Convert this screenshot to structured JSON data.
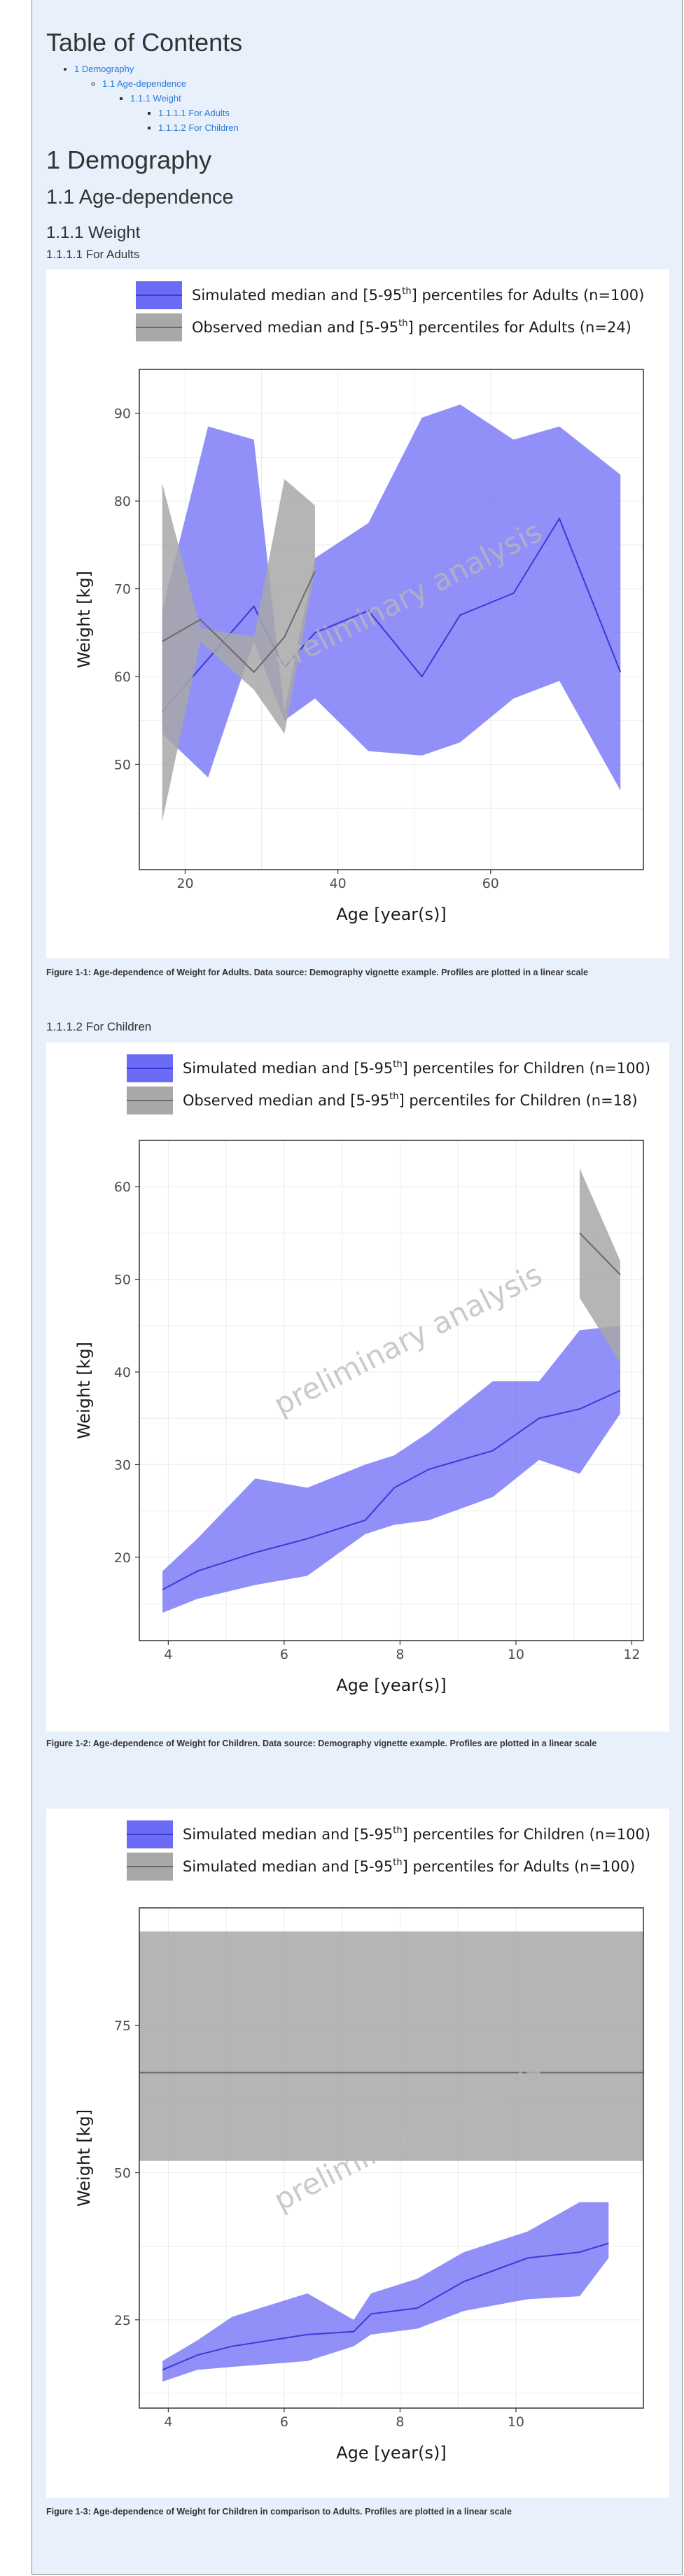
{
  "toc": {
    "title": "Table of Contents",
    "items": [
      {
        "label": "1 Demography",
        "level": 1
      },
      {
        "label": "1.1 Age-dependence",
        "level": 2
      },
      {
        "label": "1.1.1 Weight",
        "level": 3
      },
      {
        "label": "1.1.1.1 For Adults",
        "level": 4
      },
      {
        "label": "1.1.1.2 For Children",
        "level": 4
      }
    ]
  },
  "headings": {
    "h1": "1 Demography",
    "h2": "1.1 Age-dependence",
    "h3": "1.1.1 Weight",
    "h4_adults": "1.1.1.1 For Adults",
    "h4_children": "1.1.1.2 For Children"
  },
  "watermark": "preliminary analysis",
  "colors": {
    "simulated": "#6b6bf5",
    "simulated_line": "#3a3ad6",
    "observed": "#a8a8a8",
    "observed_line": "#6a6a6a"
  },
  "chart_data": [
    {
      "type": "area",
      "caption": "Figure 1-1: Age-dependence of Weight for Adults. Data source: Demography vignette example. Profiles are plotted in a linear scale",
      "xlabel": "Age [year(s)]",
      "ylabel": "Weight [kg]",
      "xlim": [
        14,
        80
      ],
      "ylim": [
        38,
        95
      ],
      "xticks": [
        20,
        40,
        60
      ],
      "yticks": [
        50,
        60,
        70,
        80,
        90
      ],
      "legend": [
        {
          "pre": "Simulated median and [5-95",
          "sup": "th",
          "post": "] percentiles for Adults (n=100)"
        },
        {
          "pre": "Observed median and [5-95",
          "sup": "th",
          "post": "] percentiles for Adults (n=24)"
        }
      ],
      "series": [
        {
          "name": "Simulated",
          "x": [
            17,
            23,
            29,
            33,
            37,
            44,
            51,
            56,
            63,
            69,
            77
          ],
          "median": [
            56,
            62,
            68,
            61,
            65,
            67.5,
            60,
            67,
            69.5,
            78,
            60.5
          ],
          "low": [
            53.5,
            48.5,
            64,
            55,
            57.5,
            51.5,
            51,
            52.5,
            57.5,
            59.5,
            47
          ],
          "high": [
            67.5,
            88.5,
            87,
            56,
            73.5,
            77.5,
            89.5,
            91,
            87,
            88.5,
            83
          ]
        },
        {
          "name": "Observed",
          "x": [
            17,
            22,
            29,
            33,
            37
          ],
          "median": [
            64,
            66.5,
            60.5,
            64.5,
            72
          ],
          "low": [
            43.5,
            64,
            58.5,
            53.5,
            72
          ],
          "high": [
            82,
            65.5,
            64.5,
            82.5,
            79.5
          ]
        }
      ]
    },
    {
      "type": "area",
      "caption": "Figure 1-2: Age-dependence of Weight for Children. Data source: Demography vignette example. Profiles are plotted in a linear scale",
      "xlabel": "Age [year(s)]",
      "ylabel": "Weight [kg]",
      "xlim": [
        3.5,
        12.2
      ],
      "ylim": [
        11,
        65
      ],
      "xticks": [
        4,
        6,
        8,
        10,
        12
      ],
      "yticks": [
        20,
        30,
        40,
        50,
        60
      ],
      "legend": [
        {
          "pre": "Simulated median and [5-95",
          "sup": "th",
          "post": "] percentiles for Children (n=100)"
        },
        {
          "pre": "Observed median and [5-95",
          "sup": "th",
          "post": "] percentiles for Children (n=18)"
        }
      ],
      "series": [
        {
          "name": "Simulated",
          "x": [
            3.9,
            4.5,
            5.5,
            6.4,
            7.4,
            7.9,
            8.5,
            9.6,
            10.4,
            11.1,
            11.8
          ],
          "median": [
            16.5,
            18.5,
            20.5,
            22,
            24,
            27.5,
            29.5,
            31.5,
            35,
            36,
            38
          ],
          "low": [
            14,
            15.5,
            17,
            18,
            22.5,
            23.5,
            24,
            26.5,
            30.5,
            29,
            35.5
          ],
          "high": [
            18.5,
            22,
            28.5,
            27.5,
            30,
            31,
            33.5,
            39,
            39,
            44.5,
            45
          ]
        },
        {
          "name": "Observed",
          "x": [
            11.1,
            11.8
          ],
          "median": [
            55,
            50.5
          ],
          "low": [
            48,
            41
          ],
          "high": [
            62,
            52
          ]
        }
      ]
    },
    {
      "type": "area",
      "caption": "Figure 1-3: Age-dependence of Weight for Children in comparison to Adults. Profiles are plotted in a linear scale",
      "xlabel": "Age [year(s)]",
      "ylabel": "Weight [kg]",
      "xlim": [
        3.5,
        12.2
      ],
      "ylim": [
        10,
        95
      ],
      "xticks": [
        4,
        6,
        8,
        10
      ],
      "yticks": [
        25,
        50,
        75
      ],
      "legend": [
        {
          "pre": "Simulated median and [5-95",
          "sup": "th",
          "post": "] percentiles for Children (n=100)"
        },
        {
          "pre": "Simulated median and [5-95",
          "sup": "th",
          "post": "] percentiles for Adults (n=100)"
        }
      ],
      "series": [
        {
          "name": "Simulated",
          "x": [
            3.9,
            4.5,
            5.1,
            6.4,
            7.2,
            7.5,
            8.3,
            9.1,
            10.2,
            11.1,
            11.6
          ],
          "median": [
            16.5,
            19,
            20.5,
            22.5,
            23,
            26,
            27,
            31.5,
            35.5,
            36.5,
            38
          ],
          "low": [
            14.5,
            16.5,
            17,
            18,
            20.5,
            22.5,
            23.5,
            26.5,
            28.5,
            29,
            35.5
          ],
          "high": [
            18,
            21.5,
            25.5,
            29.5,
            25,
            29.5,
            32,
            36.5,
            40,
            45,
            45
          ]
        },
        {
          "name": "Adults",
          "x": [
            3.5,
            12.2
          ],
          "median": [
            67,
            67
          ],
          "low": [
            52,
            52
          ],
          "high": [
            91,
            91
          ]
        }
      ]
    }
  ]
}
